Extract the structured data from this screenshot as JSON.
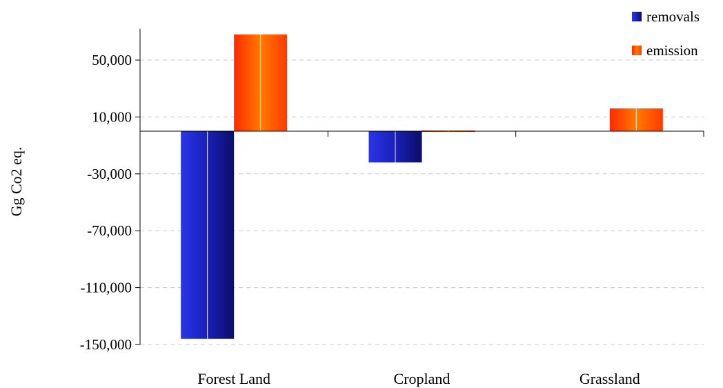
{
  "chart_data": {
    "type": "bar",
    "title": "",
    "xlabel": "",
    "ylabel": "Gg Co2 eq.",
    "categories": [
      "Forest Land",
      "Cropland",
      "Grassland"
    ],
    "series": [
      {
        "name": "removals",
        "values": [
          -146000,
          -22000,
          0
        ],
        "color": "#1a1fb8"
      },
      {
        "name": "emission",
        "values": [
          68000,
          500,
          16000
        ],
        "color": "#ff5a00"
      }
    ],
    "yticks": [
      50000,
      10000,
      -30000,
      -70000,
      -110000,
      -150000
    ],
    "ytick_labels": [
      "50,000",
      "10,000",
      "-30,000",
      "-70,000",
      "-110,000",
      "-150,000"
    ],
    "ylim": [
      -150000,
      70000
    ],
    "grid": true,
    "legend_position": "top-right"
  }
}
